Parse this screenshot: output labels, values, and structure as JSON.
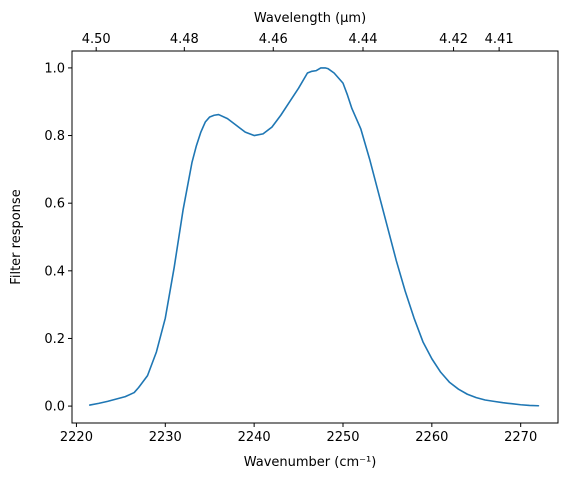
{
  "chart_data": {
    "type": "line",
    "xlabel": "Wavenumber (cm⁻¹)",
    "ylabel": "Filter response",
    "x2label": "Wavelength (μm)",
    "xlim": [
      2219.5,
      2274.2
    ],
    "ylim": [
      -0.05,
      1.05
    ],
    "xticks": [
      2220,
      2230,
      2240,
      2250,
      2260,
      2270
    ],
    "xtick_labels": [
      "2220",
      "2230",
      "2240",
      "2250",
      "2260",
      "2270"
    ],
    "yticks": [
      0.0,
      0.2,
      0.4,
      0.6,
      0.8,
      1.0
    ],
    "ytick_labels": [
      "0.0",
      "0.2",
      "0.4",
      "0.6",
      "0.8",
      "1.0"
    ],
    "x2ticks": [
      4.5,
      4.48,
      4.46,
      4.44,
      4.42,
      4.41
    ],
    "x2tick_labels": [
      "4.50",
      "4.48",
      "4.46",
      "4.44",
      "4.42",
      "4.41"
    ],
    "grid": false,
    "line_color": "#1f77b4",
    "series": [
      {
        "x": [
          2221.5,
          2222.5,
          2223.5,
          2224.5,
          2225.5,
          2226.5,
          2227.0,
          2228.0,
          2229.0,
          2230.0,
          2231.0,
          2232.0,
          2233.0,
          2233.5,
          2234.0,
          2234.5,
          2235.0,
          2235.5,
          2236.0,
          2237.0,
          2238.0,
          2239.0,
          2240.0,
          2241.0,
          2242.0,
          2243.0,
          2244.0,
          2245.0,
          2246.0,
          2246.5,
          2247.0,
          2247.5,
          2248.0,
          2248.3,
          2249.0,
          2250.0,
          2250.5,
          2251.0,
          2252.0,
          2253.0,
          2254.0,
          2255.0,
          2256.0,
          2257.0,
          2258.0,
          2259.0,
          2260.0,
          2261.0,
          2262.0,
          2263.0,
          2264.0,
          2265.0,
          2266.0,
          2267.0,
          2268.0,
          2269.0,
          2270.0,
          2271.0,
          2272.0
        ],
        "y": [
          0.003,
          0.008,
          0.014,
          0.021,
          0.028,
          0.04,
          0.055,
          0.09,
          0.16,
          0.26,
          0.41,
          0.58,
          0.72,
          0.77,
          0.81,
          0.84,
          0.855,
          0.86,
          0.862,
          0.85,
          0.83,
          0.81,
          0.8,
          0.805,
          0.825,
          0.86,
          0.9,
          0.94,
          0.985,
          0.99,
          0.992,
          1.0,
          1.0,
          0.998,
          0.985,
          0.955,
          0.92,
          0.88,
          0.82,
          0.73,
          0.63,
          0.53,
          0.43,
          0.34,
          0.26,
          0.19,
          0.14,
          0.1,
          0.07,
          0.05,
          0.035,
          0.025,
          0.018,
          0.014,
          0.01,
          0.007,
          0.004,
          0.002,
          0.001
        ]
      }
    ]
  }
}
